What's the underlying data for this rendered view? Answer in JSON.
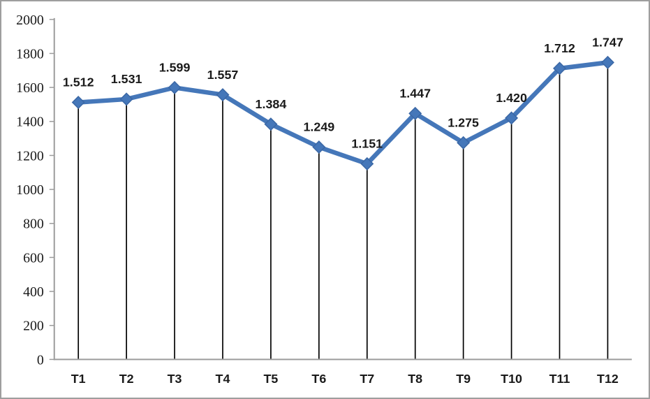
{
  "chart_data": {
    "type": "line",
    "title": "",
    "xlabel": "",
    "ylabel": "",
    "categories": [
      "T1",
      "T2",
      "T3",
      "T4",
      "T5",
      "T6",
      "T7",
      "T8",
      "T9",
      "T10",
      "T11",
      "T12"
    ],
    "series": [
      {
        "name": "series-1",
        "values": [
          1512,
          1531,
          1599,
          1557,
          1384,
          1249,
          1151,
          1447,
          1275,
          1420,
          1712,
          1747
        ],
        "labels": [
          "1.512",
          "1.531",
          "1.599",
          "1.557",
          "1.384",
          "1.249",
          "1.151",
          "1.447",
          "1.275",
          "1.420",
          "1.712",
          "1.747"
        ],
        "color": "#4577b9",
        "marker": "diamond",
        "marker_edge_color": "#3a67a5"
      }
    ],
    "ylim": [
      0,
      2000
    ],
    "ytick_step": 200,
    "ytick_labels": [
      "0",
      "200",
      "400",
      "600",
      "800",
      "1000",
      "1200",
      "1400",
      "1600",
      "1800",
      "2000"
    ],
    "grid": false,
    "legend_position": "none",
    "drop_lines": true,
    "drop_line_color": "#000000",
    "axis_color": "#9c9c9c",
    "text_color": "#1a1a1a",
    "frame_border_color": "#9e9e9e",
    "background_color": "#ffffff"
  }
}
